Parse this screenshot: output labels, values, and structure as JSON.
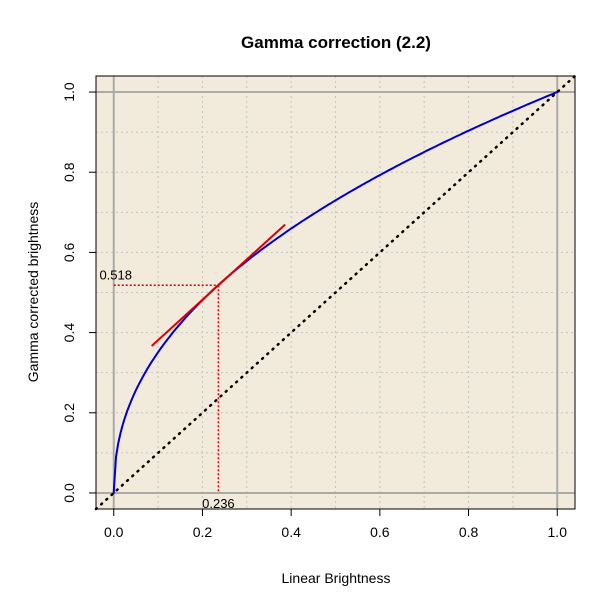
{
  "chart_data": {
    "type": "line",
    "title": "Gamma correction (2.2)",
    "xlabel": "Linear Brightness",
    "ylabel": "Gamma corrected brightness",
    "xlim": [
      -0.04,
      1.04
    ],
    "ylim": [
      -0.04,
      1.04
    ],
    "xticks": [
      "0.0",
      "0.2",
      "0.4",
      "0.6",
      "0.8",
      "1.0"
    ],
    "yticks": [
      "0.0",
      "0.2",
      "0.4",
      "0.6",
      "0.8",
      "1.0"
    ],
    "grid": true,
    "background_color": "#f2eadb",
    "unit_box_color": "#aaaaaa",
    "series": [
      {
        "style": "solid",
        "color": "#0000cc",
        "gamma": 2.2,
        "x": [
          0,
          0.001,
          0.005,
          0.01,
          0.02,
          0.04,
          0.06,
          0.08,
          0.1,
          0.15,
          0.2,
          0.25,
          0.3,
          0.35,
          0.4,
          0.45,
          0.5,
          0.55,
          0.6,
          0.65,
          0.7,
          0.75,
          0.8,
          0.85,
          0.9,
          0.95,
          1.0
        ],
        "y": [
          0,
          0.043,
          0.09,
          0.123,
          0.169,
          0.232,
          0.278,
          0.317,
          0.351,
          0.422,
          0.481,
          0.533,
          0.579,
          0.62,
          0.659,
          0.696,
          0.73,
          0.762,
          0.793,
          0.822,
          0.85,
          0.877,
          0.904,
          0.929,
          0.953,
          0.977,
          1.0
        ]
      },
      {
        "style": "dotted",
        "color": "#000000",
        "x": [
          -0.04,
          1.04
        ],
        "y": [
          -0.04,
          1.04
        ]
      },
      {
        "style": "solid",
        "color": "#dd0000",
        "x": [
          0.087,
          0.385
        ],
        "y": [
          0.368,
          0.668
        ]
      }
    ],
    "reference_point": {
      "x": 0.236,
      "y": 0.518,
      "color": "#dd0000"
    },
    "annotations": [
      {
        "text": "0.518",
        "x": 0.0,
        "y": 0.518
      },
      {
        "text": "0.236",
        "x": 0.236,
        "y": 0.0
      }
    ]
  }
}
